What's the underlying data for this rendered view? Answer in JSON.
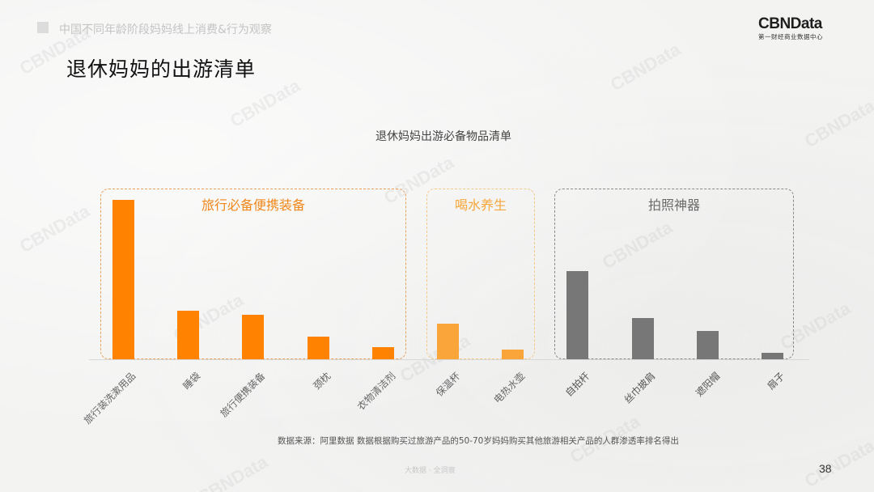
{
  "header": {
    "section_title": "中国不同年龄阶段妈妈线上消费&行为观察",
    "page_title": "退休妈妈的出游清单",
    "logo": {
      "main": "CBNData",
      "sub": "第一财经商业数据中心"
    }
  },
  "colors": {
    "orange_primary": "#ff8200",
    "orange_light": "#f9a53a",
    "gray_bar": "#777777",
    "group1_border": "#e7a15a",
    "group2_border": "#f2c98a",
    "group3_border": "#8a8a8a",
    "group1_label": "#f0871a",
    "group2_label": "#f6a73a",
    "group3_label": "#6a6a6a"
  },
  "chart_data": {
    "type": "bar",
    "title": "退休妈妈出游必备物品清单",
    "xlabel": "",
    "ylabel": "",
    "y_axis_visible": false,
    "grid": false,
    "value_note": "Relative penetration-rate ranking; no numeric axis shown. Values are relative bar heights estimated in pixels.",
    "categories": [
      "旅行装洗漱用品",
      "睡袋",
      "旅行便携装备",
      "颈枕",
      "衣物清洁剂",
      "保温杯",
      "电热水壶",
      "自拍杆",
      "丝巾披肩",
      "遮阳帽",
      "扇子"
    ],
    "values": [
      197,
      60,
      55,
      28,
      15,
      44,
      12,
      109,
      51,
      35,
      8
    ],
    "groups": [
      {
        "name": "旅行必备便携装备",
        "categories": [
          "旅行装洗漱用品",
          "睡袋",
          "旅行便携装备",
          "颈枕",
          "衣物清洁剂"
        ],
        "color": "#ff8200"
      },
      {
        "name": "喝水养生",
        "categories": [
          "保温杯",
          "电热水壶"
        ],
        "color": "#f9a53a"
      },
      {
        "name": "拍照神器",
        "categories": [
          "自拍杆",
          "丝巾披肩",
          "遮阳帽",
          "扇子"
        ],
        "color": "#777777"
      }
    ],
    "ylim": [
      0,
      200
    ]
  },
  "footnote": "数据来源：阿里数据    数据根据购买过旅游产品的50-70岁妈妈购买其他旅游相关产品的人群渗透率排名得出",
  "footer": {
    "text": "大数据 · 全洞察",
    "page_number": "38"
  },
  "watermark": "CBNData"
}
